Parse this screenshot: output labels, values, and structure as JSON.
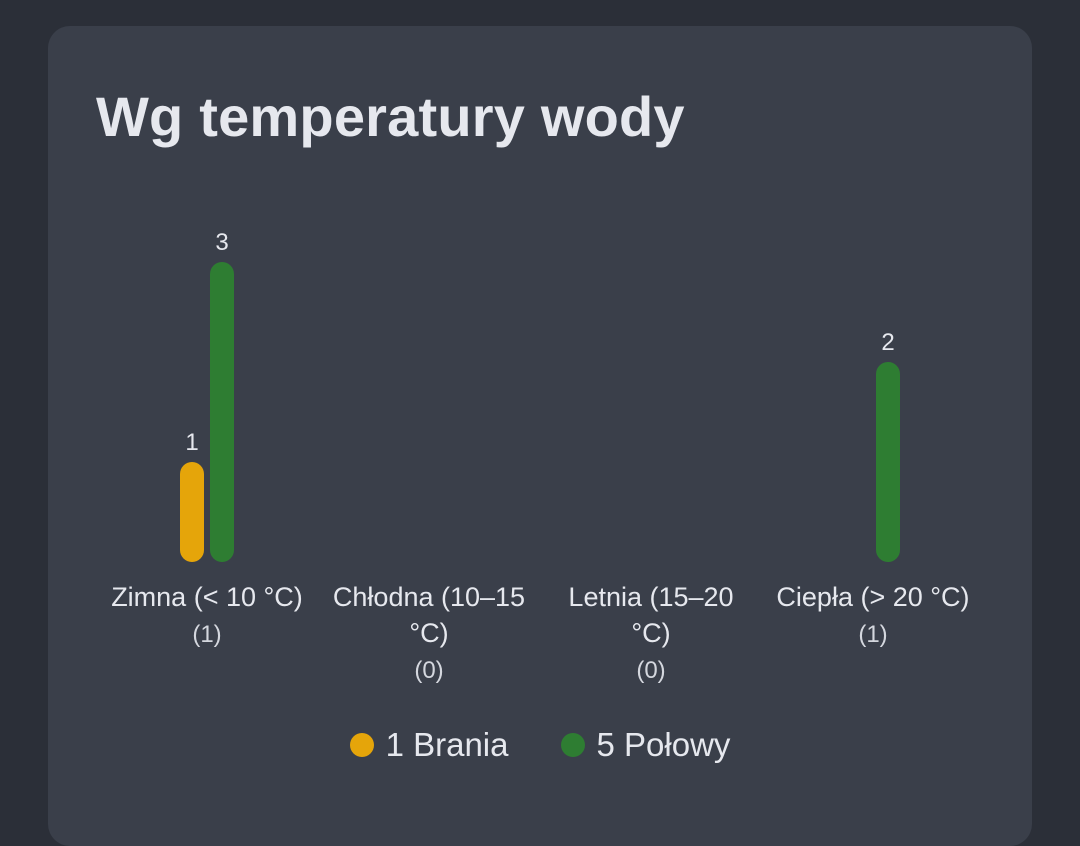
{
  "card": {
    "title": "Wg temperatury wody"
  },
  "chart_data": {
    "type": "bar",
    "title": "Wg temperatury wody",
    "categories": [
      {
        "label": "Zimna (< 10 °C)",
        "label_lines": [
          "Zimna (< 10 °C)"
        ],
        "count": "(1)"
      },
      {
        "label": "Chłodna (10–15 °C)",
        "label_lines": [
          "Chłodna (10–15",
          "°C)"
        ],
        "count": "(0)"
      },
      {
        "label": "Letnia (15–20 °C)",
        "label_lines": [
          "Letnia (15–20",
          "°C)"
        ],
        "count": "(0)"
      },
      {
        "label": "Ciepła (> 20 °C)",
        "label_lines": [
          "Ciepła (> 20 °C)"
        ],
        "count": "(1)"
      }
    ],
    "series": [
      {
        "name": "1 Brania",
        "color": "#e5a50a",
        "values": [
          1,
          0,
          0,
          0
        ]
      },
      {
        "name": "5 Połowy",
        "color": "#2e7d32",
        "values": [
          3,
          0,
          0,
          2
        ]
      }
    ],
    "ylim": [
      0,
      3
    ],
    "grid": false,
    "legend_position": "bottom-center"
  }
}
